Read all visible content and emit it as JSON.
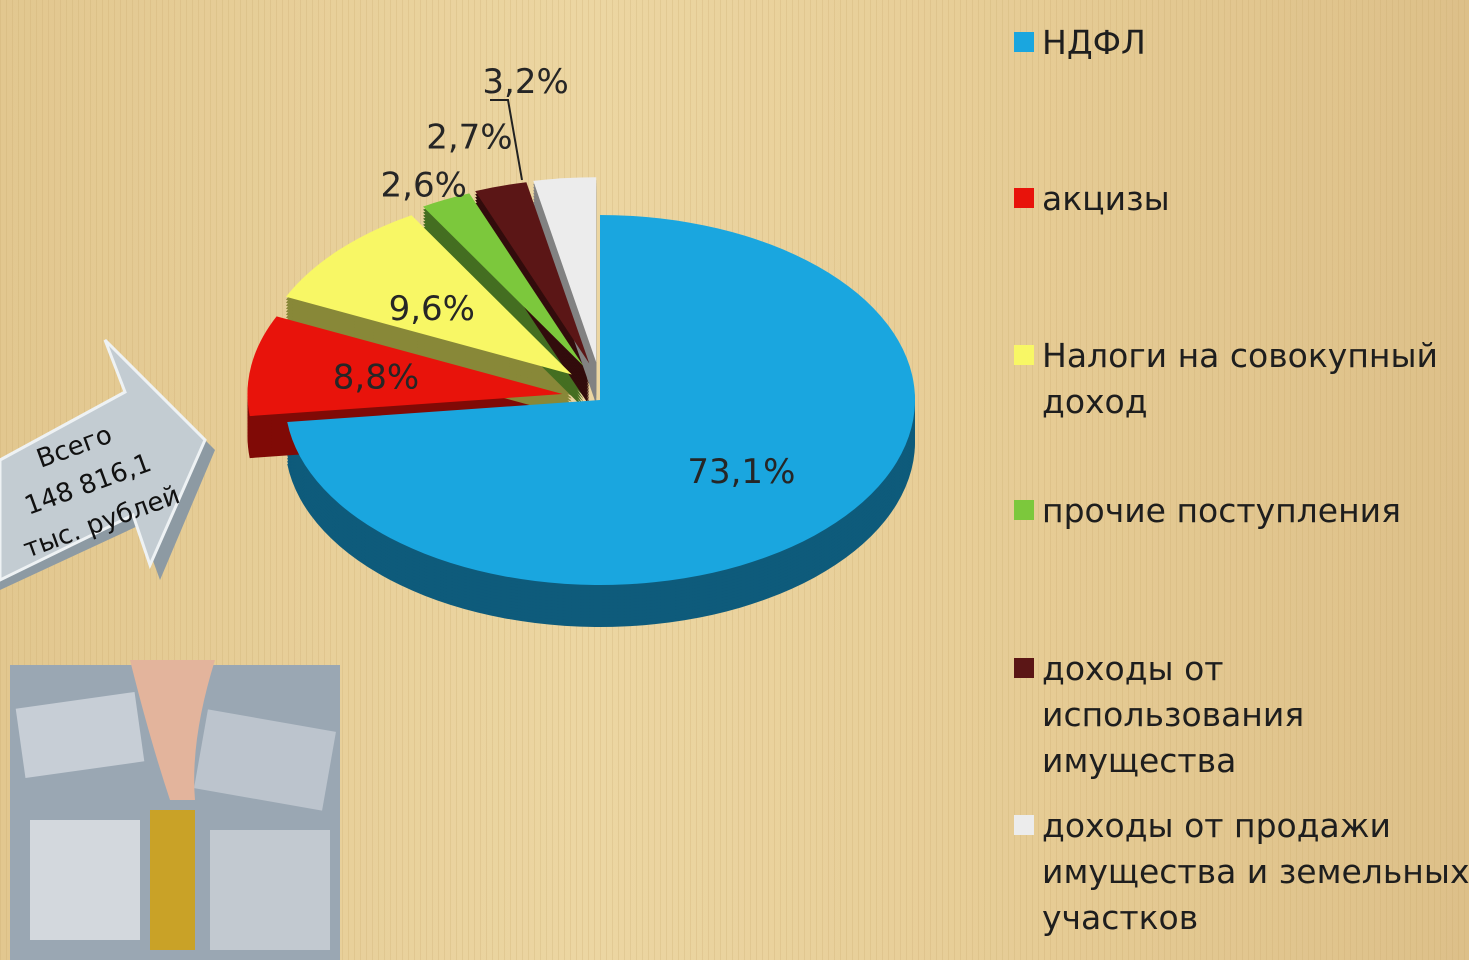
{
  "chart_data": {
    "type": "pie3d",
    "categories": [
      "НДФЛ",
      "акцизы",
      "Налоги на совокупный доход",
      "прочие поступления",
      "доходы от использования имущества",
      "доходы от продажи имущества и земельных участков"
    ],
    "values": [
      73.1,
      8.8,
      9.6,
      2.6,
      2.7,
      3.2
    ],
    "value_labels": [
      "73,1%",
      "8,8%",
      "9,6%",
      "2,6%",
      "2,7%",
      "3,2%"
    ],
    "colors": [
      "#1aa6df",
      "#e8130b",
      "#f8f765",
      "#7cc83c",
      "#5b1616",
      "#ececec"
    ],
    "annotation_lines": [
      "Всего",
      "148 816,1",
      "тыс. рублей"
    ],
    "legend": "right"
  }
}
